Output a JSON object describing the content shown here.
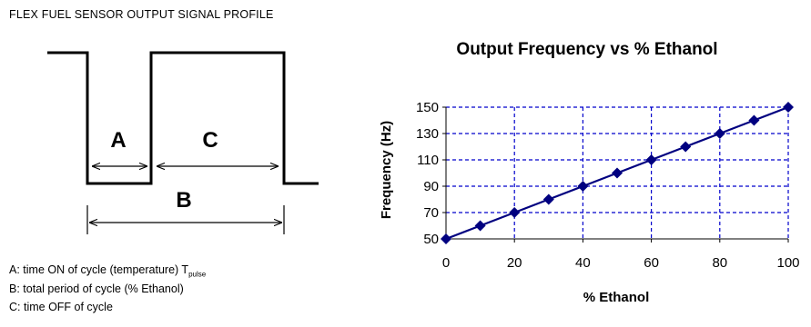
{
  "page_title": "FLEX FUEL SENSOR OUTPUT SIGNAL PROFILE",
  "signal_diagram": {
    "label_a": "A",
    "label_b": "B",
    "label_c": "C"
  },
  "legend": [
    {
      "key": "A:",
      "text": "time ON of cycle (temperature) T",
      "sub": "pulse"
    },
    {
      "key": "B:",
      "text": "total period of cycle (% Ethanol)",
      "sub": ""
    },
    {
      "key": "C:",
      "text": "time OFF of cycle",
      "sub": ""
    }
  ],
  "chart_data": {
    "type": "line",
    "title": "Output Frequency vs % Ethanol",
    "xlabel": "% Ethanol",
    "ylabel": "Frequency (Hz)",
    "x": [
      0,
      10,
      20,
      30,
      40,
      50,
      60,
      70,
      80,
      90,
      100
    ],
    "series": [
      {
        "values": [
          50,
          60,
          70,
          80,
          90,
          100,
          110,
          120,
          130,
          140,
          150
        ]
      }
    ],
    "xlim": [
      0,
      100
    ],
    "ylim": [
      50,
      150
    ],
    "xticks": [
      0,
      20,
      40,
      60,
      80,
      100
    ],
    "yticks": [
      50,
      70,
      90,
      110,
      130,
      150
    ],
    "grid": true,
    "marker": "diamond",
    "color": "#000080",
    "grid_color": "#0000cc"
  }
}
